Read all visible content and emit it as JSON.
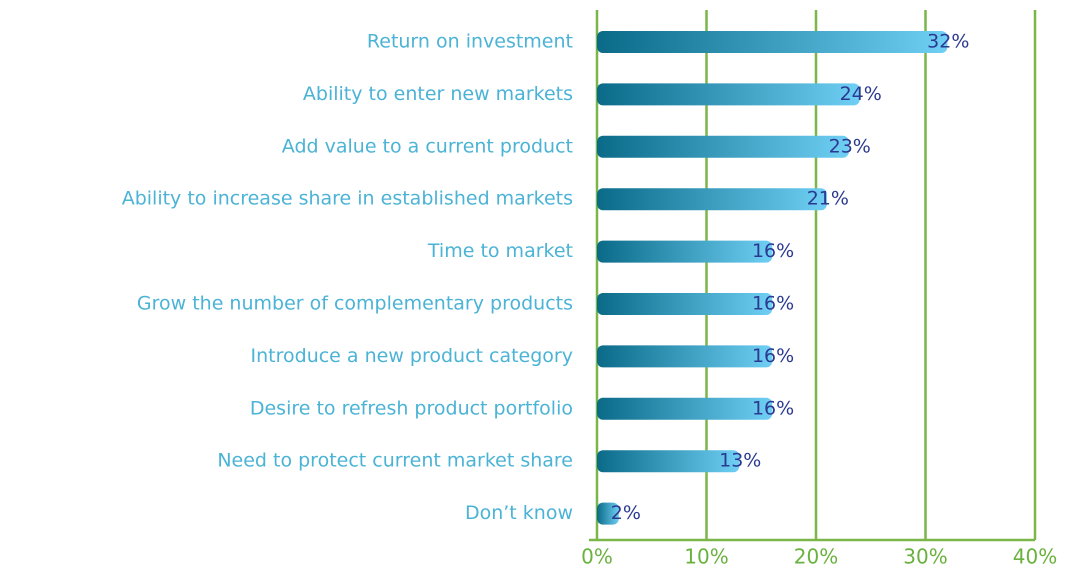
{
  "chart_data": {
    "type": "bar",
    "orientation": "horizontal",
    "categories": [
      "Return on investment",
      "Ability to enter new markets",
      "Add value to a current product",
      "Ability to increase share in established markets",
      "Time to market",
      "Grow the number of complementary products",
      "Introduce a new product category",
      "Desire to refresh product portfolio",
      "Need to protect current market share",
      "Don’t know"
    ],
    "values": [
      32,
      24,
      23,
      21,
      16,
      16,
      16,
      16,
      13,
      2
    ],
    "value_labels": [
      "32%",
      "24%",
      "23%",
      "21%",
      "16%",
      "16%",
      "16%",
      "16%",
      "13%",
      "2%"
    ],
    "color": [
      "#0a6a88",
      "#6fcff4"
    ],
    "xlim": [
      0,
      40
    ],
    "xticks": [
      {
        "value": 0,
        "label": "0%"
      },
      {
        "value": 10,
        "label": "10%"
      },
      {
        "value": 20,
        "label": "20%"
      },
      {
        "value": 30,
        "label": "30%"
      },
      {
        "value": 40,
        "label": "40%"
      }
    ],
    "grid": true
  }
}
